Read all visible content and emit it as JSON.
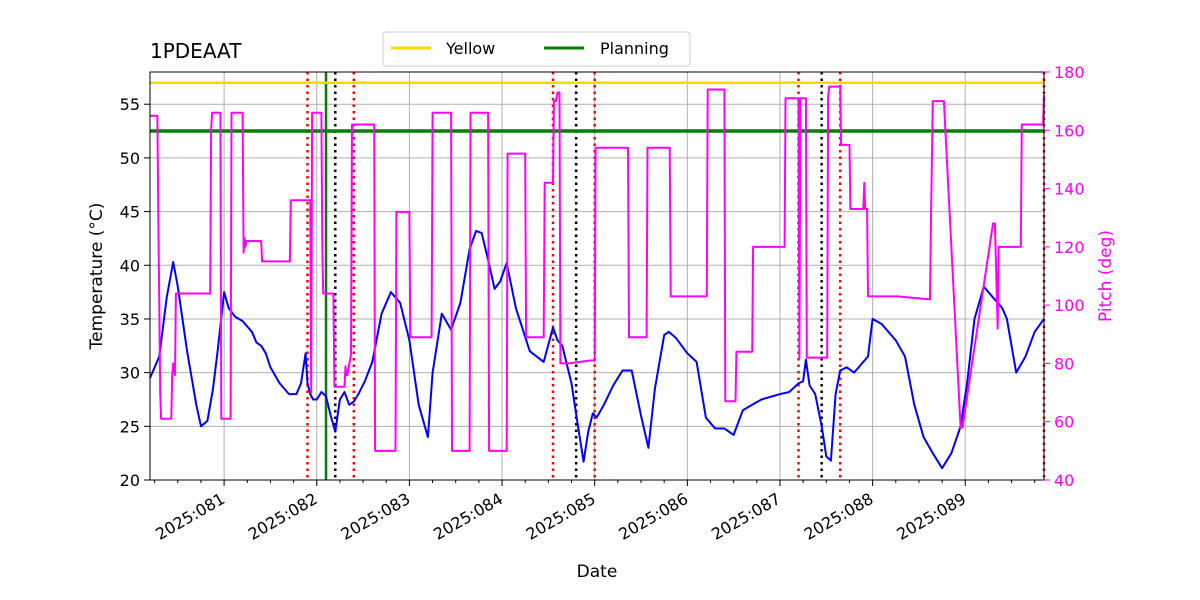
{
  "chart_data": {
    "type": "line",
    "title": "1PDEAAT",
    "xlabel": "Date",
    "ylabel_left": "Temperature ($^\\circ$C)",
    "ylabel_left_display": "Temperature (°C)",
    "ylabel_right": "Pitch (deg)",
    "xlim": [
      80.2,
      89.85
    ],
    "ylim_left": [
      20,
      58
    ],
    "ylim_right": [
      40,
      180
    ],
    "grid": true,
    "x_ticks": [
      81,
      82,
      83,
      84,
      85,
      86,
      87,
      88,
      89
    ],
    "x_tick_labels": [
      "2025:081",
      "2025:082",
      "2025:083",
      "2025:084",
      "2025:085",
      "2025:086",
      "2025:087",
      "2025:088",
      "2025:089"
    ],
    "y_left_ticks": [
      20,
      25,
      30,
      35,
      40,
      45,
      50,
      55
    ],
    "y_left_tick_labels": [
      "20",
      "25",
      "30",
      "35",
      "40",
      "45",
      "50",
      "55"
    ],
    "y_right_ticks": [
      40,
      60,
      80,
      100,
      120,
      140,
      160,
      180
    ],
    "y_right_tick_labels": [
      "40",
      "60",
      "80",
      "100",
      "120",
      "140",
      "160",
      "180"
    ],
    "legend": {
      "location": "top-center",
      "entries": [
        {
          "label": "Yellow",
          "color": "#ffd700"
        },
        {
          "label": "Planning",
          "color": "#008000"
        }
      ]
    },
    "limits": {
      "yellow": 57,
      "planning": 52.5
    },
    "vlines": {
      "green": [
        82.1
      ],
      "red_dotted": [
        81.9,
        82.4,
        84.55,
        85.0,
        87.2,
        87.65,
        89.85
      ],
      "black_dotted": [
        82.2,
        84.8,
        87.45
      ]
    },
    "colors": {
      "temperature": "#0000ff",
      "pitch": "#ff00ff",
      "yellow": "#ffd700",
      "planning": "#008000",
      "red_line": "#ff0000",
      "black_line": "#000000",
      "right_axis": "#ff00ff"
    },
    "series": [
      {
        "name": "Temperature",
        "axis": "left",
        "x": [
          80.2,
          80.3,
          80.38,
          80.45,
          80.5,
          80.6,
          80.7,
          80.75,
          80.82,
          80.88,
          80.93,
          81.0,
          81.05,
          81.12,
          81.2,
          81.3,
          81.35,
          81.4,
          81.45,
          81.5,
          81.6,
          81.7,
          81.78,
          81.83,
          81.88,
          81.9,
          81.93,
          81.96,
          82.0,
          82.05,
          82.1,
          82.15,
          82.2,
          82.25,
          82.3,
          82.35,
          82.4,
          82.45,
          82.52,
          82.6,
          82.7,
          82.8,
          82.9,
          83.0,
          83.1,
          83.2,
          83.25,
          83.35,
          83.45,
          83.55,
          83.65,
          83.72,
          83.78,
          83.85,
          83.92,
          83.98,
          84.05,
          84.15,
          84.3,
          84.45,
          84.55,
          84.6,
          84.65,
          84.75,
          84.82,
          84.88,
          84.93,
          84.98,
          85.02,
          85.1,
          85.2,
          85.3,
          85.4,
          85.5,
          85.58,
          85.65,
          85.75,
          85.8,
          85.88,
          86.0,
          86.1,
          86.2,
          86.3,
          86.4,
          86.5,
          86.6,
          86.7,
          86.8,
          87.0,
          87.1,
          87.2,
          87.25,
          87.28,
          87.32,
          87.38,
          87.45,
          87.5,
          87.55,
          87.6,
          87.65,
          87.72,
          87.8,
          87.9,
          87.95,
          88.0,
          88.1,
          88.25,
          88.35,
          88.45,
          88.55,
          88.65,
          88.75,
          88.85,
          88.95,
          89.02,
          89.1,
          89.2,
          89.3,
          89.35,
          89.4,
          89.45,
          89.55,
          89.65,
          89.75,
          89.85
        ],
        "values": [
          29.5,
          31.5,
          37.0,
          40.3,
          38.0,
          32.0,
          27.0,
          25.0,
          25.5,
          28.5,
          32.0,
          37.5,
          36.0,
          35.2,
          34.8,
          33.8,
          32.8,
          32.5,
          31.8,
          30.5,
          29.0,
          28.0,
          28.0,
          29.0,
          31.8,
          29.0,
          28.0,
          27.5,
          27.5,
          28.2,
          27.8,
          26.0,
          24.5,
          27.5,
          28.2,
          27.0,
          27.3,
          28.0,
          29.2,
          31.0,
          35.5,
          37.5,
          36.5,
          33.0,
          27.0,
          24.0,
          30.0,
          35.5,
          34.0,
          36.5,
          41.5,
          43.2,
          43.0,
          40.5,
          37.8,
          38.5,
          40.2,
          36.0,
          32.0,
          31.0,
          34.2,
          33.0,
          32.5,
          29.0,
          25.0,
          21.7,
          24.5,
          26.2,
          25.8,
          27.0,
          28.8,
          30.2,
          30.2,
          26.0,
          23.0,
          28.5,
          33.5,
          33.8,
          33.2,
          31.8,
          31.0,
          25.8,
          24.8,
          24.8,
          24.2,
          26.5,
          27.0,
          27.5,
          28.0,
          28.2,
          29.0,
          29.2,
          31.2,
          28.8,
          28.0,
          25.0,
          22.2,
          21.8,
          28.0,
          30.2,
          30.5,
          30.0,
          31.0,
          31.5,
          35.0,
          34.5,
          33.0,
          31.5,
          27.0,
          24.0,
          22.5,
          21.1,
          22.5,
          25.0,
          29.0,
          35.0,
          38.0,
          37.0,
          36.5,
          36.0,
          35.0,
          30.0,
          31.5,
          33.8,
          35.0
        ]
      },
      {
        "name": "Pitch",
        "axis": "right",
        "x": [
          80.2,
          80.28,
          80.29,
          80.3,
          80.31,
          80.32,
          80.43,
          80.44,
          80.45,
          80.47,
          80.48,
          80.85,
          80.86,
          80.87,
          80.96,
          80.97,
          81.0,
          81.07,
          81.08,
          81.2,
          81.21,
          81.22,
          81.23,
          81.24,
          81.4,
          81.41,
          81.7,
          81.71,
          81.72,
          81.83,
          81.84,
          81.93,
          81.94,
          81.95,
          82.05,
          82.06,
          82.07,
          82.18,
          82.19,
          82.3,
          82.31,
          82.32,
          82.33,
          82.37,
          82.38,
          82.39,
          82.62,
          82.63,
          82.64,
          82.7,
          82.85,
          82.86,
          83.0,
          83.01,
          83.23,
          83.24,
          83.25,
          83.45,
          83.46,
          83.47,
          83.65,
          83.66,
          83.67,
          83.85,
          83.86,
          83.87,
          84.05,
          84.06,
          84.07,
          84.25,
          84.26,
          84.27,
          84.45,
          84.46,
          84.47,
          84.55,
          84.56,
          84.58,
          84.6,
          84.62,
          84.63,
          84.68,
          84.7,
          84.72,
          84.95,
          84.96,
          85.0,
          85.01,
          85.35,
          85.36,
          85.37,
          85.55,
          85.56,
          85.57,
          85.8,
          85.81,
          85.82,
          86.2,
          86.21,
          86.22,
          86.4,
          86.41,
          86.42,
          86.52,
          86.53,
          86.54,
          86.7,
          86.71,
          86.72,
          87.05,
          87.06,
          87.07,
          87.2,
          87.21,
          87.22,
          87.28,
          87.29,
          87.3,
          87.5,
          87.51,
          87.52,
          87.53,
          87.6,
          87.65,
          87.66,
          87.75,
          87.76,
          87.77,
          87.9,
          87.91,
          87.92,
          87.94,
          87.95,
          87.96,
          88.25,
          88.26,
          88.27,
          88.6,
          88.61,
          88.62,
          88.63,
          88.65,
          88.75,
          88.76,
          88.77,
          88.95,
          88.96,
          88.97,
          89.3,
          89.31,
          89.32,
          89.35,
          89.36,
          89.37,
          89.6,
          89.61,
          89.62,
          89.84,
          89.85
        ],
        "values": [
          165,
          165,
          130,
          100,
          70,
          61,
          61,
          76,
          80,
          76,
          104,
          104,
          160,
          166,
          166,
          61,
          61,
          61,
          166,
          166,
          118,
          123,
          120,
          122,
          122,
          115,
          115,
          115,
          136,
          136,
          136,
          136,
          70,
          166,
          166,
          120,
          104,
          104,
          72,
          72,
          79,
          76,
          76,
          83,
          162,
          162,
          162,
          50,
          50,
          50,
          50,
          132,
          132,
          89,
          89,
          89,
          166,
          166,
          50,
          50,
          50,
          166,
          166,
          166,
          50,
          50,
          50,
          152,
          152,
          152,
          89,
          89,
          89,
          142,
          142,
          142,
          170,
          170,
          173,
          173,
          80,
          80,
          80,
          80,
          81,
          81,
          81,
          154,
          154,
          154,
          89,
          89,
          89,
          154,
          154,
          154,
          103,
          103,
          103,
          174,
          174,
          67,
          67,
          67,
          84,
          84,
          84,
          120,
          120,
          120,
          171,
          171,
          171,
          82,
          171,
          171,
          82,
          82,
          82,
          82,
          171,
          175,
          175,
          175,
          155,
          155,
          133,
          133,
          133,
          142,
          133,
          133,
          103,
          103,
          103,
          103,
          103,
          102,
          102,
          102,
          130,
          170,
          170,
          170,
          170,
          58,
          58,
          58,
          128,
          128,
          128,
          92,
          120,
          120,
          120,
          162,
          162,
          162,
          172
        ]
      }
    ]
  }
}
